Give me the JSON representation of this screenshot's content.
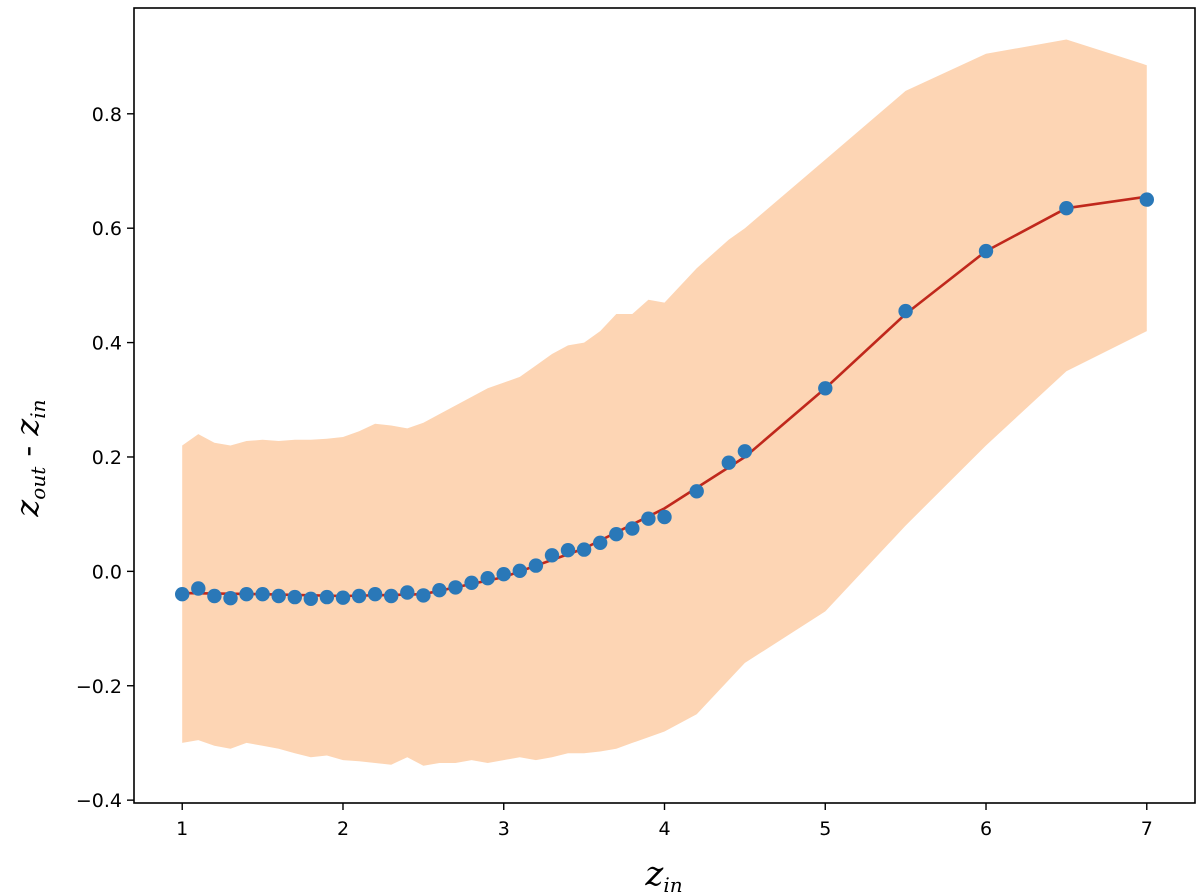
{
  "chart_data": {
    "type": "line",
    "title": "",
    "xlabel": {
      "base": "z",
      "sub": "in"
    },
    "ylabel": {
      "base": "z",
      "sub1": "out",
      "sep": " - ",
      "base2": "z",
      "sub2": "in"
    },
    "xlim": [
      0.7,
      7.3
    ],
    "ylim": [
      -0.405,
      0.985
    ],
    "x_ticks": [
      1,
      2,
      3,
      4,
      5,
      6,
      7
    ],
    "x_tick_labels": [
      "1",
      "2",
      "3",
      "4",
      "5",
      "6",
      "7"
    ],
    "y_ticks": [
      -0.4,
      -0.2,
      0.0,
      0.2,
      0.4,
      0.6,
      0.8
    ],
    "y_tick_labels": [
      "−0.4",
      "−0.2",
      "0.0",
      "0.2",
      "0.4",
      "0.6",
      "0.8"
    ],
    "grid": false,
    "legend": "none",
    "colors": {
      "band": "#fdd5b4",
      "line": "#c0281c",
      "points": "#2a78b8"
    },
    "band": {
      "x": [
        1.0,
        1.1,
        1.2,
        1.3,
        1.4,
        1.5,
        1.6,
        1.7,
        1.8,
        1.9,
        2.0,
        2.1,
        2.2,
        2.3,
        2.4,
        2.5,
        2.6,
        2.7,
        2.8,
        2.9,
        3.0,
        3.1,
        3.2,
        3.3,
        3.4,
        3.5,
        3.6,
        3.7,
        3.8,
        3.9,
        4.0,
        4.2,
        4.4,
        4.5,
        5.0,
        5.5,
        6.0,
        6.5,
        7.0
      ],
      "upper": [
        0.22,
        0.24,
        0.225,
        0.22,
        0.228,
        0.23,
        0.228,
        0.23,
        0.23,
        0.232,
        0.235,
        0.245,
        0.258,
        0.255,
        0.25,
        0.26,
        0.275,
        0.29,
        0.305,
        0.32,
        0.33,
        0.34,
        0.36,
        0.38,
        0.395,
        0.4,
        0.42,
        0.45,
        0.45,
        0.475,
        0.47,
        0.53,
        0.58,
        0.6,
        0.72,
        0.84,
        0.905,
        0.93,
        0.885
      ],
      "lower": [
        -0.3,
        -0.295,
        -0.305,
        -0.31,
        -0.3,
        -0.305,
        -0.31,
        -0.318,
        -0.325,
        -0.322,
        -0.33,
        -0.332,
        -0.335,
        -0.338,
        -0.325,
        -0.34,
        -0.335,
        -0.335,
        -0.33,
        -0.335,
        -0.33,
        -0.325,
        -0.33,
        -0.325,
        -0.318,
        -0.318,
        -0.315,
        -0.31,
        -0.3,
        -0.29,
        -0.28,
        -0.25,
        -0.19,
        -0.16,
        -0.07,
        0.08,
        0.22,
        0.35,
        0.42
      ]
    },
    "series": [
      {
        "x": [
          1.0,
          1.1,
          1.2,
          1.3,
          1.4,
          1.5,
          1.6,
          1.7,
          1.8,
          1.9,
          2.0,
          2.1,
          2.2,
          2.3,
          2.4,
          2.5,
          2.6,
          2.7,
          2.8,
          2.9,
          3.0,
          3.1,
          3.2,
          3.3,
          3.4,
          3.5,
          3.6,
          3.7,
          3.8,
          3.9,
          4.0,
          4.2,
          4.4,
          4.5,
          5.0,
          5.5,
          6.0,
          6.5,
          7.0
        ],
        "values": [
          -0.04,
          -0.03,
          -0.043,
          -0.047,
          -0.04,
          -0.04,
          -0.043,
          -0.045,
          -0.048,
          -0.045,
          -0.046,
          -0.043,
          -0.04,
          -0.043,
          -0.037,
          -0.042,
          -0.033,
          -0.028,
          -0.02,
          -0.012,
          -0.005,
          0.001,
          0.01,
          0.028,
          0.037,
          0.038,
          0.05,
          0.065,
          0.075,
          0.092,
          0.095,
          0.14,
          0.19,
          0.21,
          0.32,
          0.455,
          0.56,
          0.635,
          0.65
        ]
      }
    ],
    "trend_line": {
      "x": [
        1.0,
        1.5,
        2.0,
        2.5,
        3.0,
        3.5,
        4.0,
        4.5,
        5.0,
        5.5,
        6.0,
        6.5,
        7.0
      ],
      "values": [
        -0.038,
        -0.04,
        -0.043,
        -0.04,
        -0.01,
        0.04,
        0.11,
        0.2,
        0.32,
        0.45,
        0.56,
        0.635,
        0.655
      ]
    }
  }
}
